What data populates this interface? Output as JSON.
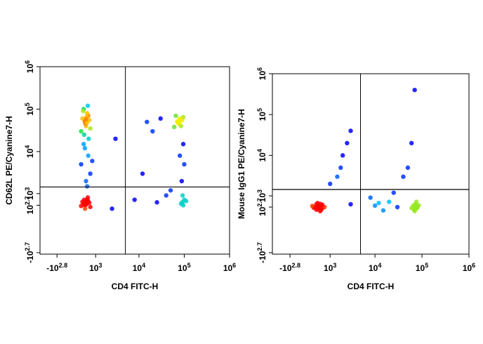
{
  "chart_data": [
    {
      "type": "scatter",
      "x_label": "CD4 FITC-H",
      "y_label": "CD62L PE/Cyanine7-H",
      "xscale": "biexponential",
      "yscale": "biexponential",
      "xlim": [
        -1800,
        1000000
      ],
      "ylim": [
        -550,
        1000000
      ],
      "xticks": [
        {
          "value": -631,
          "label": "-10",
          "exponent": "2.8"
        },
        {
          "value": 1000,
          "label": "10",
          "exponent": "3"
        },
        {
          "value": 10000,
          "label": "10",
          "exponent": "4"
        },
        {
          "value": 100000,
          "label": "10",
          "exponent": "5"
        },
        {
          "value": 1000000,
          "label": "10",
          "exponent": "6"
        }
      ],
      "yticks": [
        {
          "value": -501,
          "label": "-10",
          "exponent": "2.7"
        },
        {
          "value": 501,
          "label": "10",
          "exponent": "2.7"
        },
        {
          "value": 1000,
          "label": "10",
          "exponent": "3"
        },
        {
          "value": 10000,
          "label": "10",
          "exponent": "4"
        },
        {
          "value": 100000,
          "label": "10",
          "exponent": "5"
        },
        {
          "value": 1000000,
          "label": "10",
          "exponent": "6"
        }
      ],
      "gate_x": 5000,
      "gate_y": 1450,
      "x": [
        300,
        450,
        600,
        500,
        350,
        700,
        550,
        400,
        650,
        480,
        520,
        420,
        580,
        380,
        620,
        460,
        540,
        500,
        450,
        600,
        300,
        700,
        500,
        400,
        550,
        800,
        400,
        500,
        600,
        450,
        550,
        350,
        650,
        500,
        480,
        520,
        700,
        300,
        580,
        420,
        460,
        540,
        70000,
        80000,
        75000,
        90000,
        65000,
        85000,
        72000,
        78000,
        95000,
        60000,
        82000,
        76000,
        90000,
        95000,
        100000,
        85000,
        110000,
        92000,
        88000,
        100000,
        95000,
        80000,
        20000,
        15000,
        30000,
        3000,
        8000,
        25000,
        40000,
        12000,
        50000,
        2500
      ],
      "values": [
        30000,
        50000,
        70000,
        40000,
        60000,
        35000,
        80000,
        100000,
        55000,
        45000,
        65000,
        25000,
        120000,
        90000,
        20000,
        52000,
        48000,
        58000,
        12000,
        8000,
        5000,
        3000,
        2000,
        15000,
        1500,
        6000,
        550,
        600,
        650,
        500,
        700,
        620,
        580,
        520,
        640,
        560,
        450,
        480,
        800,
        700,
        400,
        610,
        50000,
        60000,
        45000,
        55000,
        70000,
        40000,
        52000,
        48000,
        65000,
        38000,
        58000,
        53000,
        600,
        500,
        700,
        550,
        650,
        900,
        2000,
        5000,
        15000,
        8000,
        30000,
        50000,
        60000,
        20000,
        700,
        600,
        900,
        3000,
        1200,
        400
      ]
    },
    {
      "type": "scatter",
      "x_label": "CD4 FITC-H",
      "y_label": "Mouse IgG1 PE/Cyanine7-H",
      "xscale": "biexponential",
      "yscale": "biexponential",
      "xlim": [
        -1800,
        1000000
      ],
      "ylim": [
        -550,
        1000000
      ],
      "xticks": [
        {
          "value": -631,
          "label": "-10",
          "exponent": "2.8"
        },
        {
          "value": 1000,
          "label": "10",
          "exponent": "3"
        },
        {
          "value": 10000,
          "label": "10",
          "exponent": "4"
        },
        {
          "value": 100000,
          "label": "10",
          "exponent": "5"
        },
        {
          "value": 1000000,
          "label": "10",
          "exponent": "6"
        }
      ],
      "yticks": [
        {
          "value": -501,
          "label": "-10",
          "exponent": "2.7"
        },
        {
          "value": 501,
          "label": "10",
          "exponent": "2.7"
        },
        {
          "value": 1000,
          "label": "10",
          "exponent": "3"
        },
        {
          "value": 10000,
          "label": "10",
          "exponent": "4"
        },
        {
          "value": 100000,
          "label": "10",
          "exponent": "5"
        },
        {
          "value": 1000000,
          "label": "10",
          "exponent": "6"
        }
      ],
      "gate_x": 4900,
      "gate_y": 1450,
      "x": [
        300,
        400,
        500,
        600,
        350,
        450,
        550,
        250,
        700,
        400,
        500,
        350,
        450,
        600,
        200,
        480,
        420,
        520,
        70000,
        75000,
        65000,
        80000,
        72000,
        68000,
        78000,
        85000,
        60000,
        73000,
        76000,
        70000,
        3000,
        10000,
        20000,
        15000,
        30000,
        8000,
        25000,
        12000,
        1500,
        2000,
        1000,
        2500,
        3000,
        1800,
        70000,
        60000,
        50000,
        40000
      ],
      "values": [
        500,
        450,
        520,
        480,
        600,
        550,
        420,
        480,
        500,
        650,
        380,
        420,
        500,
        580,
        540,
        460,
        520,
        610,
        500,
        450,
        550,
        480,
        600,
        420,
        520,
        560,
        470,
        510,
        700,
        380,
        600,
        550,
        700,
        400,
        500,
        900,
        1200,
        650,
        3000,
        10000,
        2000,
        20000,
        40000,
        5000,
        400000,
        20000,
        5000,
        3000
      ]
    }
  ]
}
